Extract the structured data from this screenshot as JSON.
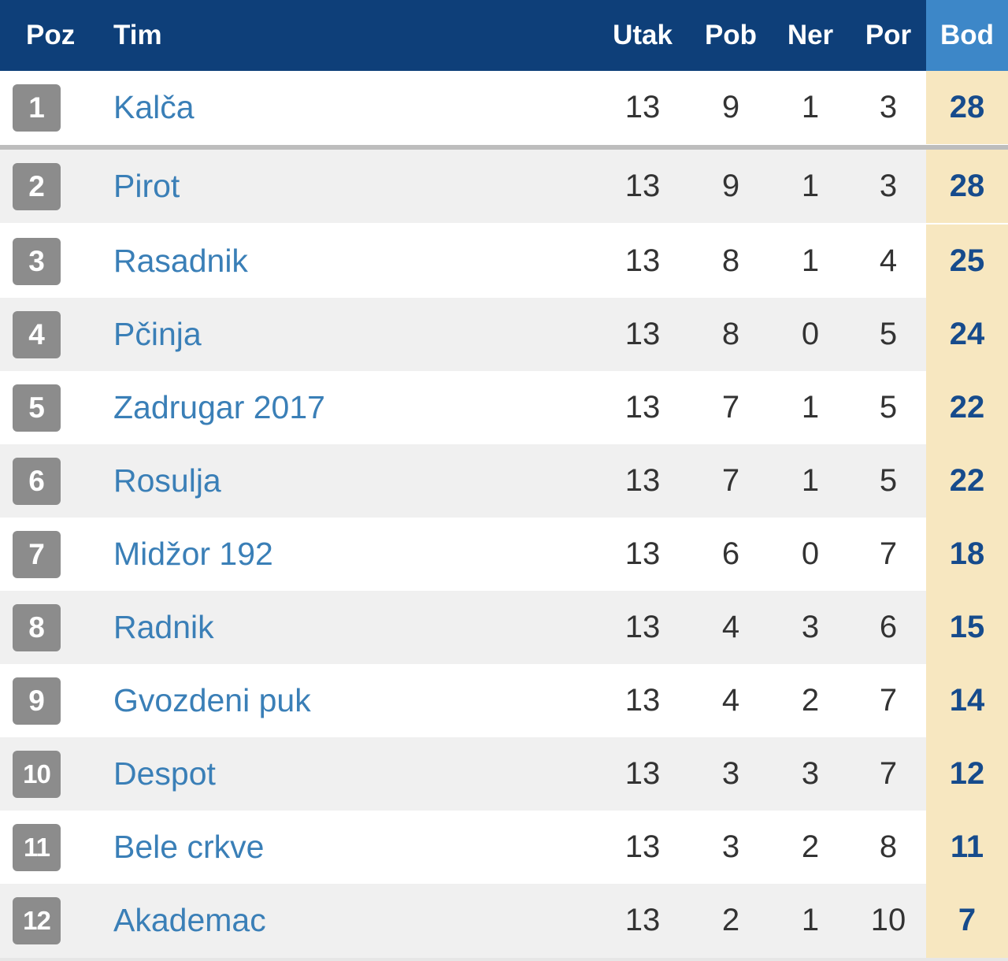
{
  "header": {
    "poz": "Poz",
    "tim": "Tim",
    "utak": "Utak",
    "pob": "Pob",
    "ner": "Ner",
    "por": "Por",
    "bod": "Bod"
  },
  "colors": {
    "header_bg": "#0e3f79",
    "header_bod_bg": "#3d87c8",
    "bod_column_bg": "#f7e7c0",
    "team_link": "#3a7fb7",
    "badge_bg": "#8c8c8c",
    "points_text": "#164b8c"
  },
  "rows": [
    {
      "pos": "1",
      "team": "Kalča",
      "utak": "13",
      "pob": "9",
      "ner": "1",
      "por": "3",
      "bod": "28"
    },
    {
      "pos": "2",
      "team": "Pirot",
      "utak": "13",
      "pob": "9",
      "ner": "1",
      "por": "3",
      "bod": "28"
    },
    {
      "pos": "3",
      "team": "Rasadnik",
      "utak": "13",
      "pob": "8",
      "ner": "1",
      "por": "4",
      "bod": "25"
    },
    {
      "pos": "4",
      "team": "Pčinja",
      "utak": "13",
      "pob": "8",
      "ner": "0",
      "por": "5",
      "bod": "24"
    },
    {
      "pos": "5",
      "team": "Zadrugar 2017",
      "utak": "13",
      "pob": "7",
      "ner": "1",
      "por": "5",
      "bod": "22"
    },
    {
      "pos": "6",
      "team": "Rosulja",
      "utak": "13",
      "pob": "7",
      "ner": "1",
      "por": "5",
      "bod": "22"
    },
    {
      "pos": "7",
      "team": "Midžor 192",
      "utak": "13",
      "pob": "6",
      "ner": "0",
      "por": "7",
      "bod": "18"
    },
    {
      "pos": "8",
      "team": "Radnik",
      "utak": "13",
      "pob": "4",
      "ner": "3",
      "por": "6",
      "bod": "15"
    },
    {
      "pos": "9",
      "team": "Gvozdeni puk",
      "utak": "13",
      "pob": "4",
      "ner": "2",
      "por": "7",
      "bod": "14"
    },
    {
      "pos": "10",
      "team": "Despot",
      "utak": "13",
      "pob": "3",
      "ner": "3",
      "por": "7",
      "bod": "12"
    },
    {
      "pos": "11",
      "team": "Bele crkve",
      "utak": "13",
      "pob": "3",
      "ner": "2",
      "por": "8",
      "bod": "11"
    },
    {
      "pos": "12",
      "team": "Akademac",
      "utak": "13",
      "pob": "2",
      "ner": "1",
      "por": "10",
      "bod": "7"
    }
  ]
}
